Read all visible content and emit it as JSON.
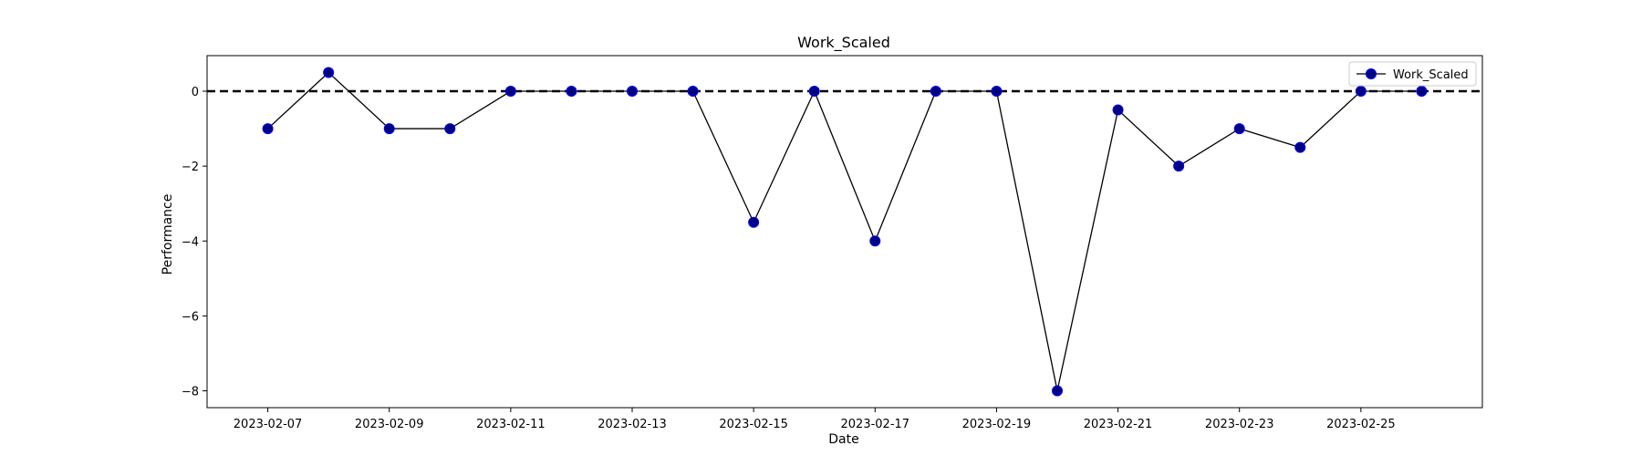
{
  "chart_data": {
    "type": "line",
    "title": "Work_Scaled",
    "xlabel": "Date",
    "ylabel": "Performance",
    "x": [
      "2023-02-07",
      "2023-02-08",
      "2023-02-09",
      "2023-02-10",
      "2023-02-11",
      "2023-02-12",
      "2023-02-13",
      "2023-02-14",
      "2023-02-15",
      "2023-02-16",
      "2023-02-17",
      "2023-02-18",
      "2023-02-19",
      "2023-02-20",
      "2023-02-21",
      "2023-02-22",
      "2023-02-23",
      "2023-02-24",
      "2023-02-25",
      "2023-02-26"
    ],
    "series": [
      {
        "name": "Work_Scaled",
        "values": [
          -1,
          0.5,
          -1,
          -1,
          0,
          0,
          0,
          0,
          -3.5,
          0,
          -4,
          0,
          0,
          -8,
          -0.5,
          -2,
          -1,
          -1.5,
          0,
          0
        ],
        "line_color": "#000000",
        "marker_fill": "#000080",
        "marker_edge": "#0000ff"
      }
    ],
    "x_ticks": [
      "2023-02-07",
      "2023-02-09",
      "2023-02-11",
      "2023-02-13",
      "2023-02-15",
      "2023-02-17",
      "2023-02-19",
      "2023-02-21",
      "2023-02-23",
      "2023-02-25"
    ],
    "xlim": [
      "2023-02-06",
      "2023-02-27"
    ],
    "y_ticks": [
      0,
      -2,
      -4,
      -6,
      -8
    ],
    "y_tick_labels": [
      "0",
      "−2",
      "−4",
      "−6",
      "−8"
    ],
    "ylim": [
      -8.45,
      0.95
    ],
    "reference_line": {
      "y": 0,
      "style": "dashed",
      "color": "#000000"
    },
    "grid": false,
    "legend": {
      "placement": "top-right"
    }
  }
}
